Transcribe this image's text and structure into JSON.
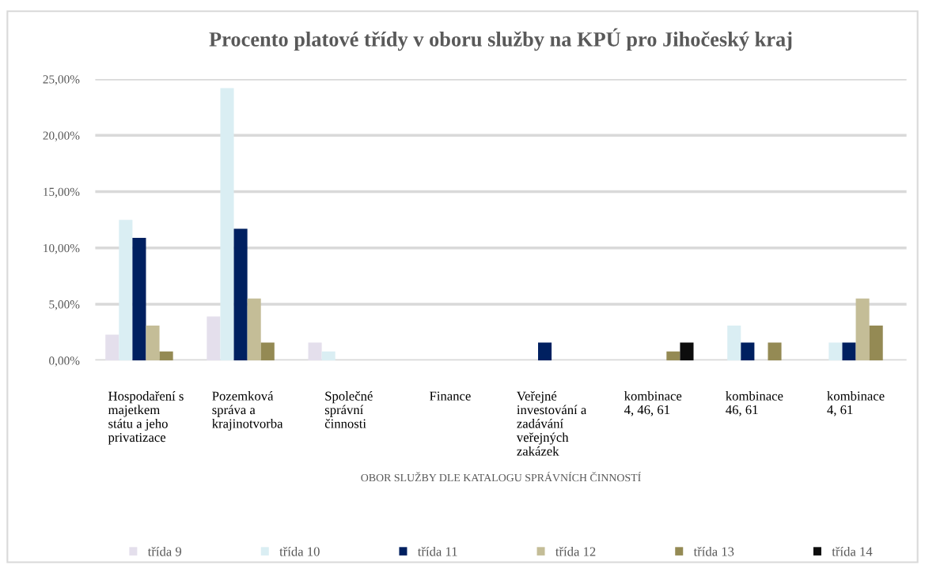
{
  "chart_data": {
    "type": "bar",
    "title": "Procento platové třídy v oboru služby na KPÚ pro Jihočeský kraj",
    "xlabel": "OBOR SLUŽBY DLE KATALOGU SPRÁVNÍCH ČINNOSTÍ",
    "categories": [
      "Hospodaření s\nmajetkem\nstátu a jeho\nprivatizace",
      "Pozemková\nspráva a\nkrajinotvorba",
      "Společné\nsprávní\nčinnosti",
      "Finance",
      "Veřejné\ninvestování a\nzadávání\nveřejných\nzakázek",
      "kombinace\n4, 46, 61",
      "kombinace\n46, 61",
      "kombinace\n4, 61"
    ],
    "series": [
      {
        "name": "třída 9",
        "color": "#e4dfec",
        "values": [
          2.3,
          3.9,
          1.6,
          0,
          0,
          0,
          0,
          0
        ]
      },
      {
        "name": "třída 10",
        "color": "#daeef3",
        "values": [
          12.5,
          24.2,
          0.8,
          0,
          0,
          0,
          3.1,
          1.6
        ]
      },
      {
        "name": "třída 11",
        "color": "#002060",
        "values": [
          10.9,
          11.7,
          0,
          0,
          1.6,
          0,
          1.6,
          1.6
        ]
      },
      {
        "name": "třída 12",
        "color": "#c4bd97",
        "values": [
          3.1,
          5.5,
          0,
          0,
          0,
          0,
          0,
          5.5
        ]
      },
      {
        "name": "třída 13",
        "color": "#948a54",
        "values": [
          0.8,
          1.6,
          0,
          0,
          0,
          0.8,
          1.6,
          3.1
        ]
      },
      {
        "name": "třída 14",
        "color": "#0d0d0d",
        "values": [
          0,
          0,
          0,
          0,
          0,
          1.6,
          0,
          0
        ]
      }
    ],
    "ylim": [
      0,
      25
    ],
    "yticks": [
      {
        "value": 0,
        "label": "0,00%"
      },
      {
        "value": 5,
        "label": "5,00%"
      },
      {
        "value": 10,
        "label": "10,00%"
      },
      {
        "value": 15,
        "label": "15,00%"
      },
      {
        "value": 20,
        "label": "20,00%"
      },
      {
        "value": 25,
        "label": "25,00%"
      }
    ],
    "grid": "y",
    "legend": "bottom"
  }
}
